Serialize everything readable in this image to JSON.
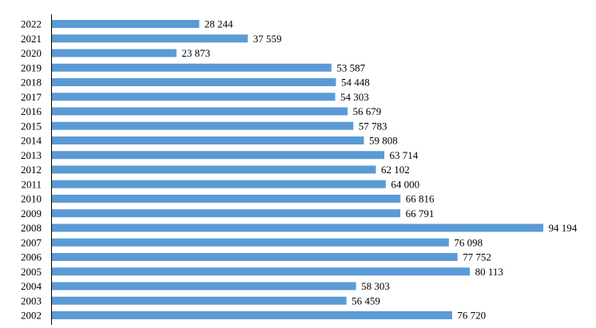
{
  "chart_data": {
    "type": "bar",
    "orientation": "horizontal",
    "title": "",
    "xlabel": "",
    "ylabel": "",
    "grid": false,
    "legend": "none",
    "bar_color": "#5b9bd5",
    "xlim": [
      0,
      100000
    ],
    "categories": [
      "2022",
      "2021",
      "2020",
      "2019",
      "2018",
      "2017",
      "2016",
      "2015",
      "2014",
      "2013",
      "2012",
      "2011",
      "2010",
      "2009",
      "2008",
      "2007",
      "2006",
      "2005",
      "2004",
      "2003",
      "2002"
    ],
    "values": [
      28244,
      37559,
      23873,
      53587,
      54448,
      54303,
      56679,
      57783,
      59808,
      63714,
      62102,
      64000,
      66816,
      66791,
      94194,
      76098,
      77752,
      80113,
      58303,
      56459,
      76720
    ],
    "value_labels": [
      "28 244",
      "37 559",
      "23 873",
      "53 587",
      "54 448",
      "54 303",
      "56 679",
      "57 783",
      "59 808",
      "63 714",
      "62 102",
      "64 000",
      "66 816",
      "66 791",
      "94 194",
      "76 098",
      "77 752",
      "80 113",
      "58 303",
      "56 459",
      "76 720"
    ]
  }
}
